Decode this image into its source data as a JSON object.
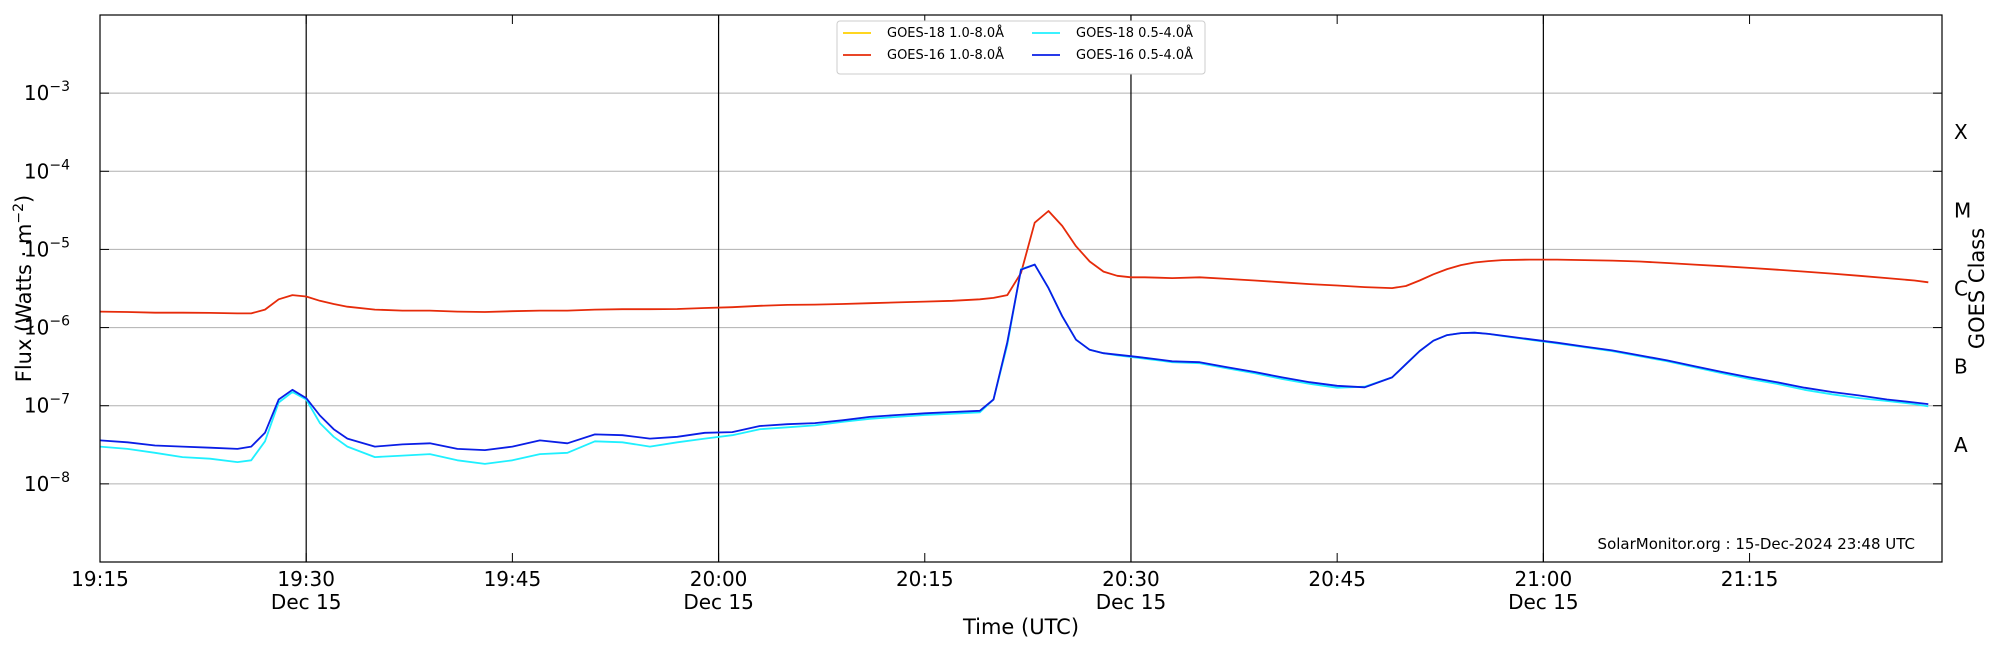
{
  "chart_data": {
    "type": "line",
    "xlabel": "Time (UTC)",
    "ylabel_main": "Flux (Watts · m",
    "ylabel_sup": "−2",
    "ylabel_close": ")",
    "ylabel_right": "GOES Class",
    "credit": "SolarMonitor.org : 15-Dec-2024 23:48 UTC",
    "x_range_minutes": [
      0,
      134
    ],
    "y_range_log10": [
      -9,
      -2
    ],
    "x_ticks": [
      {
        "t": 0,
        "label": "19:15",
        "sub": ""
      },
      {
        "t": 15,
        "label": "19:30",
        "sub": "Dec 15"
      },
      {
        "t": 30,
        "label": "19:45",
        "sub": ""
      },
      {
        "t": 45,
        "label": "20:00",
        "sub": "Dec 15"
      },
      {
        "t": 60,
        "label": "20:15",
        "sub": ""
      },
      {
        "t": 75,
        "label": "20:30",
        "sub": "Dec 15"
      },
      {
        "t": 90,
        "label": "20:45",
        "sub": ""
      },
      {
        "t": 105,
        "label": "21:00",
        "sub": "Dec 15"
      },
      {
        "t": 120,
        "label": "21:15",
        "sub": ""
      }
    ],
    "vlines": [
      15,
      45,
      75,
      105
    ],
    "y_ticks": [
      {
        "exp": -8,
        "label": "10",
        "sup": "−8"
      },
      {
        "exp": -7,
        "label": "10",
        "sup": "−7"
      },
      {
        "exp": -6,
        "label": "10",
        "sup": "−6"
      },
      {
        "exp": -5,
        "label": "10",
        "sup": "−5"
      },
      {
        "exp": -4,
        "label": "10",
        "sup": "−4"
      },
      {
        "exp": -3,
        "label": "10",
        "sup": "−3"
      }
    ],
    "class_labels": [
      {
        "label": "A",
        "exp": -7.5
      },
      {
        "label": "B",
        "exp": -6.5
      },
      {
        "label": "C",
        "exp": -5.5
      },
      {
        "label": "M",
        "exp": -4.5
      },
      {
        "label": "X",
        "exp": -3.5
      }
    ],
    "grid": true,
    "legend_position": "top-center",
    "series": [
      {
        "name": "GOES-18 1.0-8.0Å",
        "color": "#ffd000",
        "t": [],
        "values": []
      },
      {
        "name": "GOES-16 1.0-8.0Å",
        "color": "#e62b0a",
        "t": [
          0,
          2,
          4,
          6,
          8,
          10,
          11,
          12,
          13,
          14,
          15,
          16,
          17,
          18,
          20,
          22,
          24,
          26,
          28,
          30,
          32,
          34,
          36,
          38,
          40,
          42,
          44,
          46,
          48,
          50,
          52,
          54,
          56,
          58,
          60,
          62,
          64,
          65,
          66,
          67,
          68,
          69,
          70,
          71,
          72,
          73,
          74,
          75,
          76,
          77,
          78,
          80,
          82,
          84,
          86,
          88,
          90,
          92,
          94,
          95,
          96,
          97,
          98,
          99,
          100,
          101,
          102,
          104,
          106,
          108,
          110,
          112,
          114,
          116,
          118,
          120,
          122,
          124,
          126,
          128,
          130,
          132,
          133
        ],
        "values": [
          1.6e-06,
          1.58e-06,
          1.55e-06,
          1.55e-06,
          1.54e-06,
          1.52e-06,
          1.52e-06,
          1.7e-06,
          2.3e-06,
          2.6e-06,
          2.5e-06,
          2.2e-06,
          2e-06,
          1.85e-06,
          1.7e-06,
          1.65e-06,
          1.65e-06,
          1.6e-06,
          1.58e-06,
          1.62e-06,
          1.65e-06,
          1.65e-06,
          1.7e-06,
          1.72e-06,
          1.72e-06,
          1.73e-06,
          1.78e-06,
          1.82e-06,
          1.9e-06,
          1.95e-06,
          1.97e-06,
          2e-06,
          2.05e-06,
          2.1e-06,
          2.15e-06,
          2.2e-06,
          2.3e-06,
          2.4e-06,
          2.6e-06,
          5e-06,
          2.2e-05,
          3.1e-05,
          2e-05,
          1.1e-05,
          7e-06,
          5.2e-06,
          4.6e-06,
          4.4e-06,
          4.4e-06,
          4.35e-06,
          4.3e-06,
          4.4e-06,
          4.2e-06,
          4e-06,
          3.8e-06,
          3.6e-06,
          3.45e-06,
          3.3e-06,
          3.2e-06,
          3.4e-06,
          4e-06,
          4.8e-06,
          5.6e-06,
          6.3e-06,
          6.8e-06,
          7.1e-06,
          7.3e-06,
          7.4e-06,
          7.4e-06,
          7.3e-06,
          7.2e-06,
          7e-06,
          6.7e-06,
          6.4e-06,
          6.1e-06,
          5.8e-06,
          5.5e-06,
          5.2e-06,
          4.9e-06,
          4.6e-06,
          4.3e-06,
          4e-06,
          3.8e-06
        ]
      },
      {
        "name": "GOES-18 0.5-4.0Å",
        "color": "#1ff0ff",
        "t": [
          0,
          2,
          4,
          6,
          8,
          10,
          11,
          12,
          13,
          14,
          15,
          16,
          17,
          18,
          20,
          22,
          24,
          26,
          28,
          30,
          32,
          34,
          36,
          38,
          40,
          42,
          44,
          46,
          48,
          50,
          52,
          54,
          56,
          58,
          60,
          62,
          64,
          65,
          66,
          67,
          68,
          69,
          70,
          71,
          72,
          73,
          74,
          75,
          76,
          77,
          78,
          80,
          82,
          84,
          86,
          88,
          90,
          92,
          94,
          95,
          96,
          97,
          98,
          99,
          100,
          101,
          102,
          104,
          106,
          108,
          110,
          112,
          114,
          116,
          118,
          120,
          122,
          124,
          126,
          128,
          130,
          132,
          133
        ],
        "values": [
          3e-08,
          2.8e-08,
          2.5e-08,
          2.2e-08,
          2.1e-08,
          1.9e-08,
          2e-08,
          3.5e-08,
          1.1e-07,
          1.5e-07,
          1.2e-07,
          6e-08,
          4e-08,
          3e-08,
          2.2e-08,
          2.3e-08,
          2.4e-08,
          2e-08,
          1.8e-08,
          2e-08,
          2.4e-08,
          2.5e-08,
          3.5e-08,
          3.4e-08,
          3e-08,
          3.4e-08,
          3.8e-08,
          4.2e-08,
          5e-08,
          5.3e-08,
          5.6e-08,
          6.2e-08,
          6.8e-08,
          7.2e-08,
          7.6e-08,
          7.9e-08,
          8.2e-08,
          1.2e-07,
          6e-07,
          5.6e-06,
          6.4e-06,
          3.2e-06,
          1.4e-06,
          7e-07,
          5.2e-07,
          4.7e-07,
          4.4e-07,
          4.2e-07,
          4e-07,
          3.8e-07,
          3.6e-07,
          3.5e-07,
          3e-07,
          2.6e-07,
          2.2e-07,
          1.9e-07,
          1.7e-07,
          1.75e-07,
          2.3e-07,
          3.4e-07,
          5e-07,
          6.8e-07,
          8e-07,
          8.5e-07,
          8.6e-07,
          8.3e-07,
          7.8e-07,
          7e-07,
          6.3e-07,
          5.6e-07,
          5e-07,
          4.3e-07,
          3.7e-07,
          3.1e-07,
          2.6e-07,
          2.2e-07,
          1.9e-07,
          1.6e-07,
          1.4e-07,
          1.25e-07,
          1.15e-07,
          1.05e-07,
          9.8e-08
        ]
      },
      {
        "name": "GOES-16 0.5-4.0Å",
        "color": "#0a1ee6",
        "t": [
          0,
          2,
          4,
          6,
          8,
          10,
          11,
          12,
          13,
          14,
          15,
          16,
          17,
          18,
          20,
          22,
          24,
          26,
          28,
          30,
          32,
          34,
          36,
          38,
          40,
          42,
          44,
          46,
          48,
          50,
          52,
          54,
          56,
          58,
          60,
          62,
          64,
          65,
          66,
          67,
          68,
          69,
          70,
          71,
          72,
          73,
          74,
          75,
          76,
          77,
          78,
          80,
          82,
          84,
          86,
          88,
          90,
          92,
          94,
          95,
          96,
          97,
          98,
          99,
          100,
          101,
          102,
          104,
          106,
          108,
          110,
          112,
          114,
          116,
          118,
          120,
          122,
          124,
          126,
          128,
          130,
          132,
          133
        ],
        "values": [
          3.6e-08,
          3.4e-08,
          3.1e-08,
          3e-08,
          2.9e-08,
          2.8e-08,
          3e-08,
          4.5e-08,
          1.2e-07,
          1.6e-07,
          1.25e-07,
          7.5e-08,
          5e-08,
          3.8e-08,
          3e-08,
          3.2e-08,
          3.3e-08,
          2.8e-08,
          2.7e-08,
          3e-08,
          3.6e-08,
          3.3e-08,
          4.3e-08,
          4.2e-08,
          3.8e-08,
          4e-08,
          4.5e-08,
          4.6e-08,
          5.5e-08,
          5.8e-08,
          6e-08,
          6.5e-08,
          7.2e-08,
          7.6e-08,
          8e-08,
          8.3e-08,
          8.6e-08,
          1.2e-07,
          6.5e-07,
          5.5e-06,
          6.4e-06,
          3.2e-06,
          1.4e-06,
          7e-07,
          5.2e-07,
          4.7e-07,
          4.5e-07,
          4.3e-07,
          4.1e-07,
          3.9e-07,
          3.7e-07,
          3.6e-07,
          3.1e-07,
          2.7e-07,
          2.3e-07,
          2e-07,
          1.8e-07,
          1.72e-07,
          2.3e-07,
          3.4e-07,
          5e-07,
          6.8e-07,
          8e-07,
          8.5e-07,
          8.6e-07,
          8.3e-07,
          7.9e-07,
          7.1e-07,
          6.4e-07,
          5.7e-07,
          5.1e-07,
          4.4e-07,
          3.8e-07,
          3.2e-07,
          2.7e-07,
          2.3e-07,
          2e-07,
          1.7e-07,
          1.5e-07,
          1.35e-07,
          1.2e-07,
          1.1e-07,
          1.05e-07
        ]
      }
    ]
  }
}
